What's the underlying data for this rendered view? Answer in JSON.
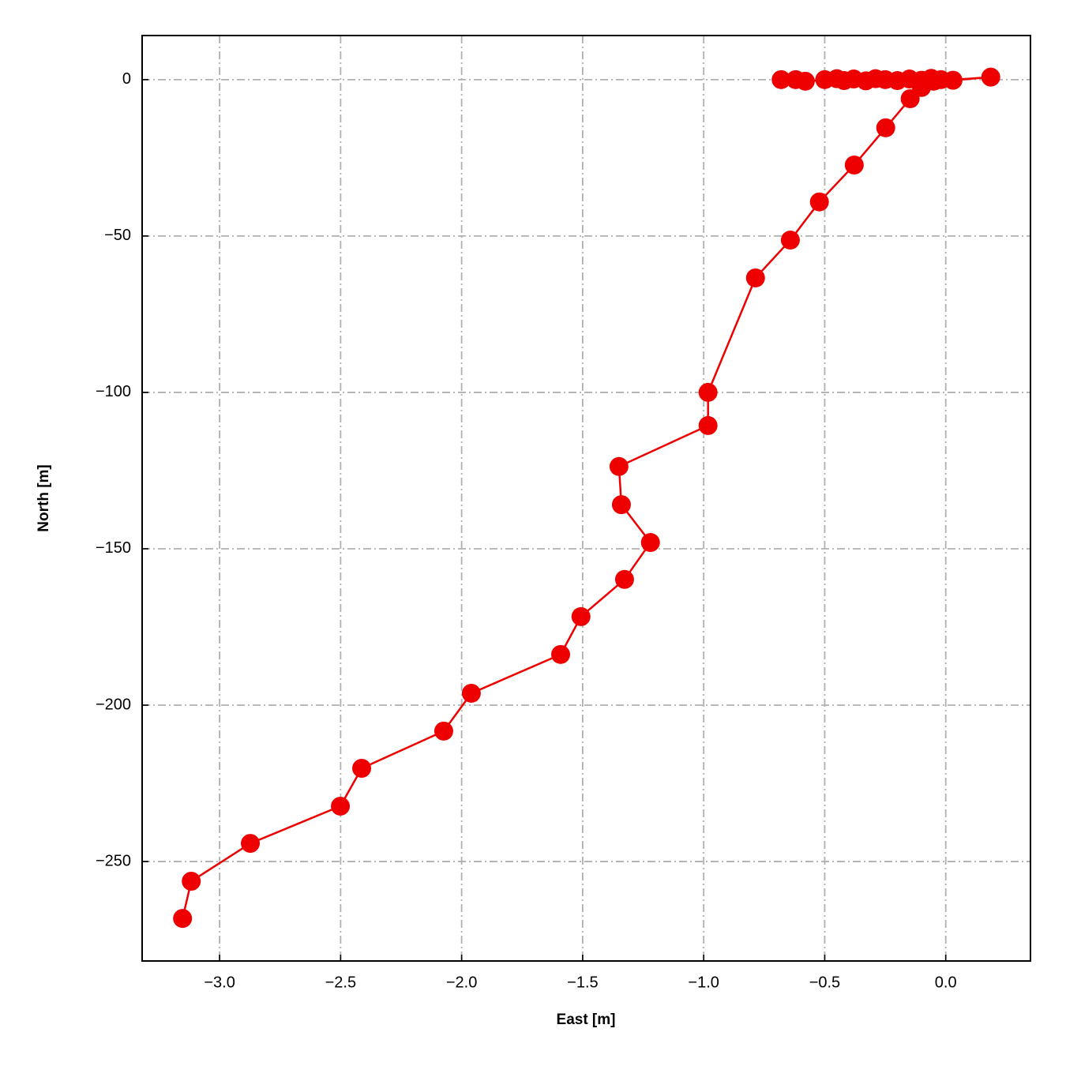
{
  "chart_data": {
    "type": "line",
    "xlabel": "East [m]",
    "ylabel": "North [m]",
    "x": [
      -0.68,
      -0.62,
      -0.58,
      -0.5,
      -0.45,
      -0.42,
      -0.38,
      -0.33,
      -0.29,
      -0.25,
      -0.2,
      -0.15,
      -0.1,
      -0.06,
      -0.02,
      0.03,
      0.186,
      -0.05,
      -0.1,
      -0.147,
      -0.248,
      -0.378,
      -0.522,
      -0.642,
      -0.786,
      -0.982,
      -0.982,
      -1.35,
      -1.34,
      -1.22,
      -1.327,
      -1.507,
      -1.591,
      -1.96,
      -2.074,
      -2.413,
      -2.501,
      -2.873,
      -3.117,
      -3.153
    ],
    "values": [
      0,
      0,
      -0.5,
      0,
      0.3,
      -0.3,
      0.2,
      -0.4,
      0.3,
      0,
      -0.3,
      0.2,
      -0.2,
      0.4,
      0,
      -0.2,
      0.8,
      -0.5,
      -2.5,
      -6.1,
      -15.4,
      -27.3,
      -39.1,
      -51.3,
      -63.4,
      -100.0,
      -110.6,
      -123.7,
      -135.9,
      -148.0,
      -159.8,
      -171.7,
      -183.8,
      -196.2,
      -208.3,
      -220.2,
      -232.3,
      -244.2,
      -256.3,
      -268.2
    ],
    "color": "#ee0000",
    "xlim": [
      -3.32,
      0.35
    ],
    "ylim": [
      -281.8,
      14.1
    ],
    "xticks": [
      {
        "value": -3.0,
        "label": "−3.0"
      },
      {
        "value": -2.5,
        "label": "−2.5"
      },
      {
        "value": -2.0,
        "label": "−2.0"
      },
      {
        "value": -1.5,
        "label": "−1.5"
      },
      {
        "value": -1.0,
        "label": "−1.0"
      },
      {
        "value": -0.5,
        "label": "−0.5"
      },
      {
        "value": 0.0,
        "label": "0.0"
      }
    ],
    "yticks": [
      0,
      {
        "value": -50,
        "label": "−50"
      },
      {
        "value": -100,
        "label": "−100"
      },
      {
        "value": -150,
        "label": "−150"
      },
      {
        "value": -200,
        "label": "−200"
      },
      {
        "value": -250,
        "label": "−250"
      }
    ],
    "grid": true
  }
}
